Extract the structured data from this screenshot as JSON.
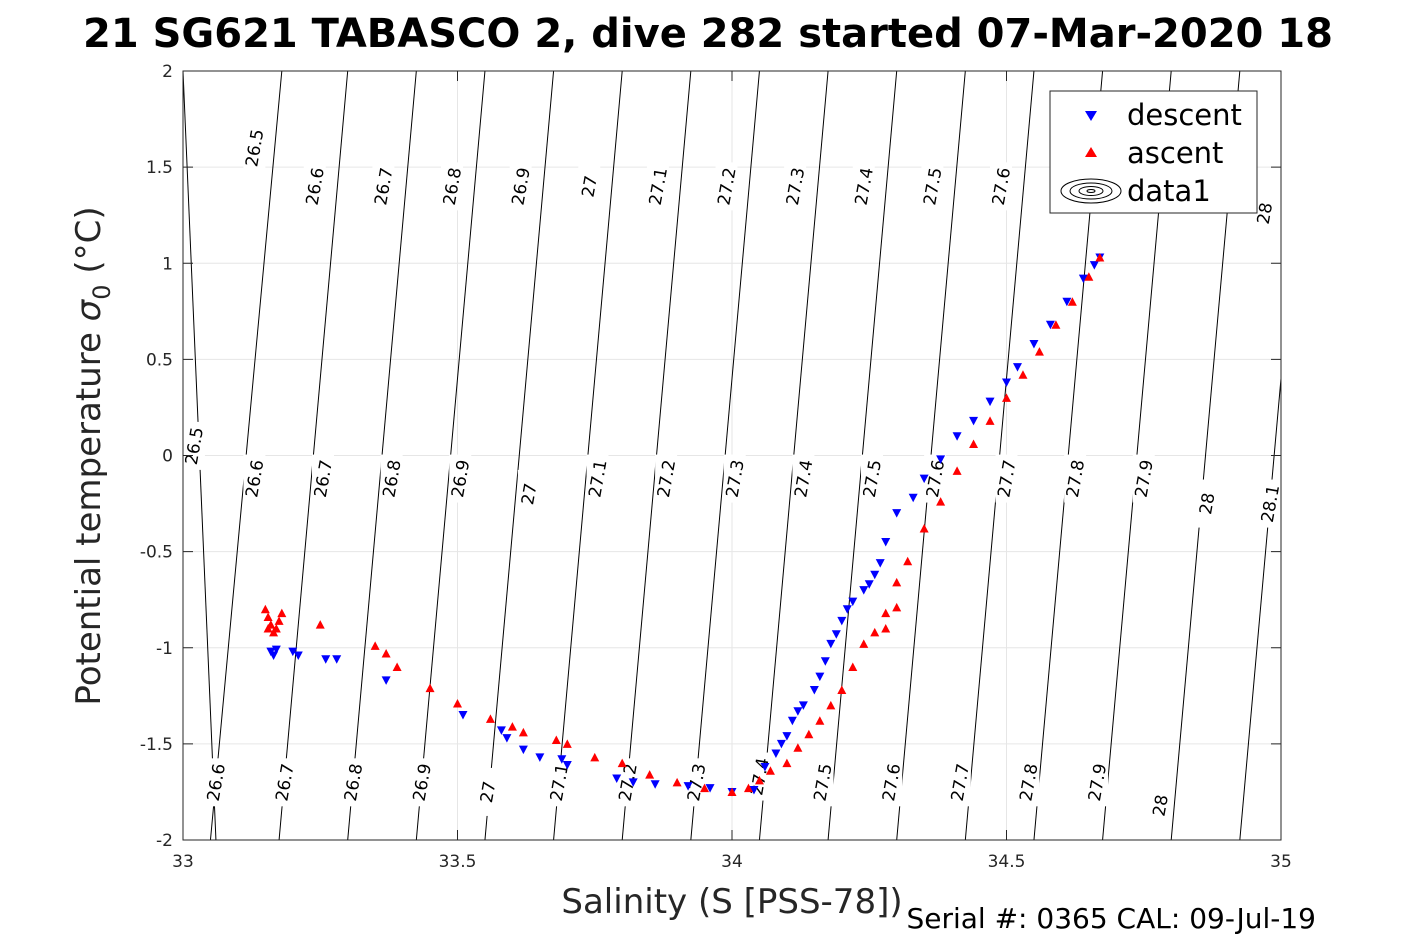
{
  "chart_data": {
    "type": "scatter",
    "title": "21 SG621 TABASCO 2, dive 282 started 07-Mar-2020 18",
    "xlabel": "Salinity (S [PSS-78])",
    "ylabel_main": "Potential temperature ",
    "ylabel_sigma": "σ",
    "ylabel_sub": "0",
    "ylabel_unit": " (°C)",
    "xlim": [
      33,
      35
    ],
    "ylim": [
      -2,
      2
    ],
    "xticks": [
      33,
      33.5,
      34,
      34.5,
      35
    ],
    "xtick_labels": [
      "33",
      "33.5",
      "34",
      "34.5",
      "35"
    ],
    "yticks": [
      2,
      1.5,
      1,
      0.5,
      0,
      -0.5,
      -1,
      -1.5,
      -2
    ],
    "ytick_labels": [
      "2",
      "1.5",
      "1",
      "0.5",
      "0",
      "-0.5",
      "-1",
      "-1.5",
      "-2"
    ],
    "grid": true,
    "legend_position": "top-right",
    "legend": [
      {
        "name": "descent",
        "marker": "triangle-down",
        "color": "#0000ff"
      },
      {
        "name": "ascent",
        "marker": "triangle-up",
        "color": "#ff0000"
      },
      {
        "name": "data1",
        "marker": "contour",
        "color": "#000000"
      }
    ],
    "density_contours": {
      "levels": [
        26.5,
        26.6,
        26.7,
        26.8,
        26.9,
        27,
        27.1,
        27.2,
        27.3,
        27.4,
        27.5,
        27.6,
        27.7,
        27.8,
        27.9,
        28,
        28.1
      ],
      "level_labels": [
        "26.5",
        "26.6",
        "26.7",
        "26.8",
        "26.9",
        "27",
        "27.1",
        "27.2",
        "27.3",
        "27.4",
        "27.5",
        "27.6",
        "27.7",
        "27.8",
        "27.9",
        "28",
        "28.1"
      ],
      "lines": [
        {
          "x_at_tmin": 33.06,
          "x_at_tmax": 33.0
        },
        {
          "x_at_tmin": 33.05,
          "x_at_tmax": 33.18
        },
        {
          "x_at_tmin": 33.175,
          "x_at_tmax": 33.3
        },
        {
          "x_at_tmin": 33.3,
          "x_at_tmax": 33.425
        },
        {
          "x_at_tmin": 33.425,
          "x_at_tmax": 33.55
        },
        {
          "x_at_tmin": 33.55,
          "x_at_tmax": 33.675
        },
        {
          "x_at_tmin": 33.675,
          "x_at_tmax": 33.8
        },
        {
          "x_at_tmin": 33.8,
          "x_at_tmax": 33.925
        },
        {
          "x_at_tmin": 33.925,
          "x_at_tmax": 34.05
        },
        {
          "x_at_tmin": 34.05,
          "x_at_tmax": 34.175
        },
        {
          "x_at_tmin": 34.175,
          "x_at_tmax": 34.3
        },
        {
          "x_at_tmin": 34.3,
          "x_at_tmax": 34.425
        },
        {
          "x_at_tmin": 34.425,
          "x_at_tmax": 34.55
        },
        {
          "x_at_tmin": 34.55,
          "x_at_tmax": 34.675
        },
        {
          "x_at_tmin": 34.675,
          "x_at_tmax": 34.8
        },
        {
          "x_at_tmin": 34.8,
          "x_at_tmax": 34.925
        },
        {
          "x_at_tmin": 34.925,
          "x_at_tmax": 35.05
        }
      ],
      "labels": [
        {
          "text": "26.5",
          "x": 33.13,
          "y": 1.6
        },
        {
          "text": "26.6",
          "x": 33.24,
          "y": 1.4
        },
        {
          "text": "26.7",
          "x": 33.365,
          "y": 1.4
        },
        {
          "text": "26.8",
          "x": 33.49,
          "y": 1.4
        },
        {
          "text": "26.9",
          "x": 33.615,
          "y": 1.4
        },
        {
          "text": "27",
          "x": 33.74,
          "y": 1.4
        },
        {
          "text": "27.1",
          "x": 33.865,
          "y": 1.4
        },
        {
          "text": "27.2",
          "x": 33.99,
          "y": 1.4
        },
        {
          "text": "27.3",
          "x": 34.115,
          "y": 1.4
        },
        {
          "text": "27.4",
          "x": 34.24,
          "y": 1.4
        },
        {
          "text": "27.5",
          "x": 34.365,
          "y": 1.4
        },
        {
          "text": "27.6",
          "x": 34.49,
          "y": 1.4
        },
        {
          "text": "28",
          "x": 34.97,
          "y": 1.26
        },
        {
          "text": "26.5",
          "x": 33.02,
          "y": 0.05
        },
        {
          "text": "26.6",
          "x": 33.13,
          "y": -0.12
        },
        {
          "text": "26.7",
          "x": 33.255,
          "y": -0.12
        },
        {
          "text": "26.8",
          "x": 33.38,
          "y": -0.12
        },
        {
          "text": "26.9",
          "x": 33.505,
          "y": -0.12
        },
        {
          "text": "27",
          "x": 33.63,
          "y": -0.2
        },
        {
          "text": "27.1",
          "x": 33.755,
          "y": -0.12
        },
        {
          "text": "27.2",
          "x": 33.88,
          "y": -0.12
        },
        {
          "text": "27.3",
          "x": 34.005,
          "y": -0.12
        },
        {
          "text": "27.4",
          "x": 34.13,
          "y": -0.12
        },
        {
          "text": "27.5",
          "x": 34.255,
          "y": -0.12
        },
        {
          "text": "27.6",
          "x": 34.37,
          "y": -0.12
        },
        {
          "text": "27.7",
          "x": 34.5,
          "y": -0.12
        },
        {
          "text": "27.8",
          "x": 34.625,
          "y": -0.12
        },
        {
          "text": "27.9",
          "x": 34.75,
          "y": -0.12
        },
        {
          "text": "28",
          "x": 34.865,
          "y": -0.25
        },
        {
          "text": "28.1",
          "x": 34.98,
          "y": -0.25
        },
        {
          "text": "26.6",
          "x": 33.06,
          "y": -1.7
        },
        {
          "text": "26.7",
          "x": 33.185,
          "y": -1.7
        },
        {
          "text": "26.8",
          "x": 33.31,
          "y": -1.7
        },
        {
          "text": "26.9",
          "x": 33.435,
          "y": -1.7
        },
        {
          "text": "27",
          "x": 33.555,
          "y": -1.75
        },
        {
          "text": "27.1",
          "x": 33.685,
          "y": -1.7
        },
        {
          "text": "27.2",
          "x": 33.81,
          "y": -1.7
        },
        {
          "text": "27.3",
          "x": 33.935,
          "y": -1.7
        },
        {
          "text": "27.4",
          "x": 34.05,
          "y": -1.67
        },
        {
          "text": "27.5",
          "x": 34.165,
          "y": -1.7
        },
        {
          "text": "27.6",
          "x": 34.29,
          "y": -1.7
        },
        {
          "text": "27.7",
          "x": 34.415,
          "y": -1.7
        },
        {
          "text": "27.8",
          "x": 34.54,
          "y": -1.7
        },
        {
          "text": "27.9",
          "x": 34.665,
          "y": -1.7
        },
        {
          "text": "28",
          "x": 34.78,
          "y": -1.82
        }
      ]
    },
    "series": [
      {
        "name": "descent",
        "marker": "triangle-down",
        "color": "#0000ff",
        "x": [
          33.16,
          33.165,
          33.17,
          33.2,
          33.21,
          33.26,
          33.28,
          33.37,
          33.51,
          33.58,
          33.59,
          33.62,
          33.65,
          33.69,
          33.7,
          33.79,
          33.82,
          33.86,
          33.92,
          33.96,
          34.0,
          34.04,
          34.06,
          34.08,
          34.09,
          34.1,
          34.11,
          34.12,
          34.13,
          34.15,
          34.16,
          34.17,
          34.18,
          34.19,
          34.2,
          34.21,
          34.22,
          34.24,
          34.25,
          34.26,
          34.27,
          34.28,
          34.3,
          34.33,
          34.35,
          34.38,
          34.41,
          34.44,
          34.47,
          34.5,
          34.52,
          34.55,
          34.58,
          34.61,
          34.64,
          34.66,
          34.67
        ],
        "y": [
          -1.02,
          -1.04,
          -1.01,
          -1.02,
          -1.04,
          -1.06,
          -1.06,
          -1.17,
          -1.35,
          -1.43,
          -1.47,
          -1.53,
          -1.57,
          -1.58,
          -1.61,
          -1.68,
          -1.7,
          -1.71,
          -1.72,
          -1.73,
          -1.75,
          -1.74,
          -1.62,
          -1.55,
          -1.5,
          -1.46,
          -1.38,
          -1.33,
          -1.3,
          -1.22,
          -1.15,
          -1.07,
          -0.98,
          -0.93,
          -0.86,
          -0.8,
          -0.76,
          -0.7,
          -0.67,
          -0.62,
          -0.56,
          -0.45,
          -0.3,
          -0.22,
          -0.12,
          -0.02,
          0.1,
          0.18,
          0.28,
          0.38,
          0.46,
          0.58,
          0.68,
          0.8,
          0.92,
          0.99,
          1.03
        ]
      },
      {
        "name": "ascent",
        "marker": "triangle-up",
        "color": "#ff0000",
        "x": [
          33.15,
          33.155,
          33.16,
          33.17,
          33.175,
          33.18,
          33.165,
          33.155,
          33.25,
          33.35,
          33.37,
          33.39,
          33.45,
          33.5,
          33.56,
          33.6,
          33.62,
          33.68,
          33.7,
          33.75,
          33.8,
          33.85,
          33.9,
          33.95,
          34.0,
          34.03,
          34.05,
          34.07,
          34.1,
          34.12,
          34.14,
          34.16,
          34.18,
          34.2,
          34.22,
          34.24,
          34.26,
          34.28,
          34.3,
          34.32,
          34.35,
          34.38,
          34.41,
          34.44,
          34.47,
          34.5,
          34.53,
          34.56,
          34.59,
          34.62,
          34.65,
          34.67,
          34.28,
          34.3
        ],
        "y": [
          -0.8,
          -0.84,
          -0.88,
          -0.9,
          -0.86,
          -0.82,
          -0.92,
          -0.9,
          -0.88,
          -0.99,
          -1.03,
          -1.1,
          -1.21,
          -1.29,
          -1.37,
          -1.41,
          -1.44,
          -1.48,
          -1.5,
          -1.57,
          -1.6,
          -1.66,
          -1.7,
          -1.73,
          -1.75,
          -1.73,
          -1.69,
          -1.64,
          -1.6,
          -1.52,
          -1.45,
          -1.38,
          -1.3,
          -1.22,
          -1.1,
          -0.98,
          -0.92,
          -0.82,
          -0.66,
          -0.55,
          -0.38,
          -0.24,
          -0.08,
          0.06,
          0.18,
          0.3,
          0.42,
          0.54,
          0.68,
          0.8,
          0.93,
          1.03,
          -0.9,
          -0.79
        ]
      }
    ],
    "footer": "Serial #: 0365  CAL: 09-Jul-19"
  }
}
